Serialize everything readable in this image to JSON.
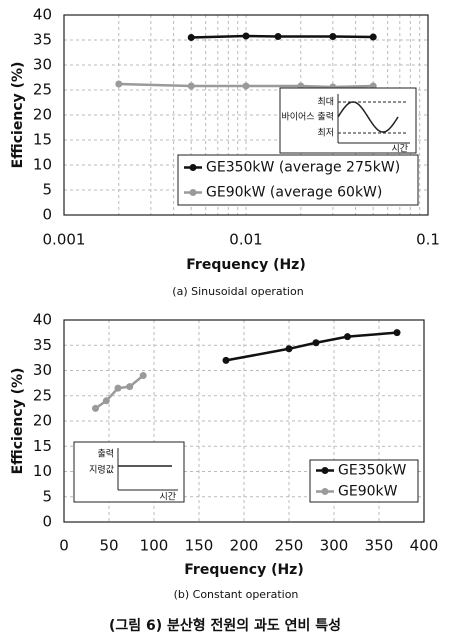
{
  "chart_data": [
    {
      "type": "line",
      "xlog": true,
      "grid": true,
      "xlabel": "Frequency (Hz)",
      "ylabel": "Efficiency (%)",
      "caption": "(a) Sinusoidal operation",
      "xlim": [
        0.001,
        0.1
      ],
      "xticks": [
        0.001,
        0.01,
        0.1
      ],
      "ylim": [
        0,
        40
      ],
      "yticks": [
        0,
        5,
        10,
        15,
        20,
        25,
        30,
        35,
        40
      ],
      "series": [
        {
          "name": "GE350kW (average 275kW)",
          "color": "#111111",
          "x": [
            0.005,
            0.01,
            0.015,
            0.03,
            0.05
          ],
          "values": [
            35.5,
            35.8,
            35.7,
            35.7,
            35.6
          ]
        },
        {
          "name": "GE90kW (average 60kW)",
          "color": "#9a9a9a",
          "x": [
            0.002,
            0.005,
            0.01,
            0.02,
            0.03,
            0.05
          ],
          "values": [
            26.2,
            25.8,
            25.8,
            25.8,
            25.6,
            25.8
          ]
        }
      ],
      "annotations": [
        "최대",
        "바이어스 출력",
        "최저",
        "시간"
      ]
    },
    {
      "type": "line",
      "xlog": false,
      "grid": true,
      "xlabel": "Frequency (Hz)",
      "ylabel": "Efficiency (%)",
      "caption": "(b) Constant operation",
      "xlim": [
        0,
        400
      ],
      "xticks": [
        0,
        50,
        100,
        150,
        200,
        250,
        300,
        350,
        400
      ],
      "ylim": [
        0,
        40
      ],
      "yticks": [
        0,
        5,
        10,
        15,
        20,
        25,
        30,
        35,
        40
      ],
      "series": [
        {
          "name": "GE350kW",
          "color": "#111111",
          "x": [
            180,
            250,
            280,
            315,
            370
          ],
          "values": [
            32,
            34.3,
            35.5,
            36.7,
            37.5
          ]
        },
        {
          "name": "GE90kW",
          "color": "#9a9a9a",
          "x": [
            35,
            47,
            60,
            73,
            88
          ],
          "values": [
            22.5,
            24,
            26.5,
            26.8,
            29
          ]
        }
      ],
      "annotations": [
        "출력",
        "지령값",
        "시간"
      ]
    }
  ],
  "figure_caption": "(그림 6) 분산형 전원의 과도 연비 특성"
}
